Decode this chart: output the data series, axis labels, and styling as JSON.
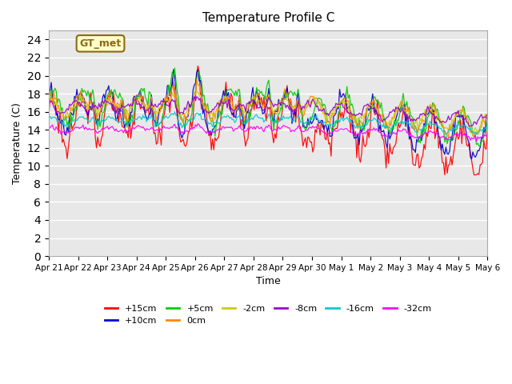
{
  "title": "Temperature Profile C",
  "xlabel": "Time",
  "ylabel": "Temperature (C)",
  "ylim": [
    0,
    25
  ],
  "yticks": [
    0,
    2,
    4,
    6,
    8,
    10,
    12,
    14,
    16,
    18,
    20,
    22,
    24
  ],
  "bg_color": "#e8e8e8",
  "fig_bg": "#ffffff",
  "annotation_label": "GT_met",
  "annotation_bg": "#ffffcc",
  "annotation_border": "#8b6914",
  "lines": [
    {
      "label": "+15cm",
      "color": "#ff0000"
    },
    {
      "label": "+10cm",
      "color": "#0000cc"
    },
    {
      "label": "+5cm",
      "color": "#00cc00"
    },
    {
      "label": "0cm",
      "color": "#ff8800"
    },
    {
      "label": "-2cm",
      "color": "#cccc00"
    },
    {
      "label": "-8cm",
      "color": "#9900cc"
    },
    {
      "label": "-16cm",
      "color": "#00cccc"
    },
    {
      "label": "-32cm",
      "color": "#ff00ff"
    }
  ],
  "n_points": 360,
  "xtick_labels": [
    "Apr 21",
    "Apr 22",
    "Apr 23",
    "Apr 24",
    "Apr 25",
    "Apr 26",
    "Apr 27",
    "Apr 28",
    "Apr 29",
    "Apr 30",
    "May 1",
    "May 2",
    "May 3",
    "May 4",
    "May 5",
    "May 6"
  ],
  "n_ticks": 16
}
